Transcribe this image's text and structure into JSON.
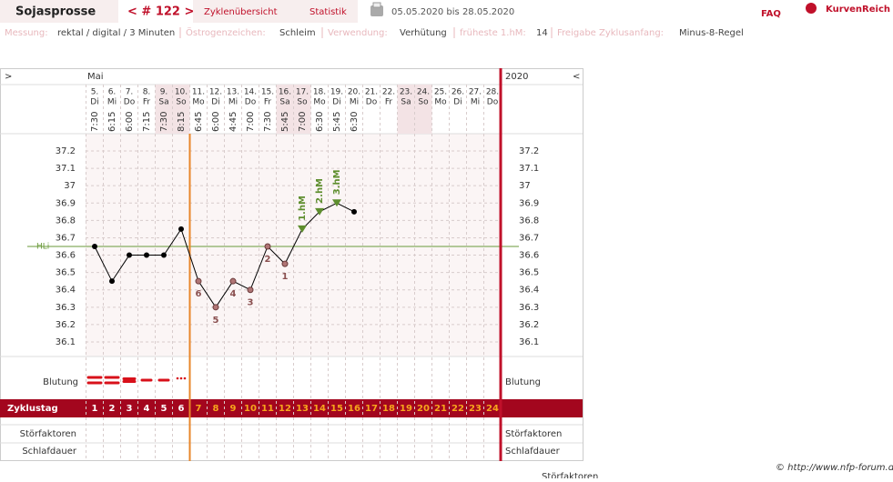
{
  "header": {
    "user": "Sojasprosse",
    "cycle_nav": "< # 122 >",
    "tabs": [
      "Zyklenübersicht",
      "Statistik"
    ],
    "date_range": "05.05.2020 bis 28.05.2020",
    "faq": "FAQ",
    "logo": "KurvenReich"
  },
  "settings": [
    {
      "label": "Messung:",
      "value": "rektal / digital / 3 Minuten"
    },
    {
      "label": "Östrogenzeichen:",
      "value": "Schleim"
    },
    {
      "label": "Verwendung:",
      "value": "Verhütung"
    },
    {
      "label": "früheste 1.hM:",
      "value": 14
    },
    {
      "label": "Freigabe Zyklusanfang:",
      "value": "Minus-8-Regel"
    }
  ],
  "chart": {
    "nav_left": ">",
    "month": "Mai",
    "year": "2020",
    "nav_right": "<",
    "temp_ticks": [
      37.2,
      37.1,
      37,
      36.9,
      36.8,
      36.7,
      36.6,
      36.5,
      36.4,
      36.3,
      36.2,
      36.1
    ],
    "hli_label": "HLi",
    "hli_value": 36.65,
    "days": [
      {
        "day": "5.",
        "weekday": "Di",
        "time": "7:30",
        "temp": 36.65,
        "cycle_day": 1,
        "bleeding": "heavy"
      },
      {
        "day": "6.",
        "weekday": "Mi",
        "time": "6:15",
        "temp": 36.45,
        "cycle_day": 2,
        "bleeding": "heavy"
      },
      {
        "day": "7.",
        "weekday": "Do",
        "time": "6:00",
        "temp": 36.6,
        "cycle_day": 3,
        "bleeding": "medium"
      },
      {
        "day": "8.",
        "weekday": "Fr",
        "time": "7:15",
        "temp": 36.6,
        "cycle_day": 4,
        "bleeding": "light"
      },
      {
        "day": "9.",
        "weekday": "Sa",
        "time": "7:30",
        "temp": 36.6,
        "cycle_day": 5,
        "bleeding": "light"
      },
      {
        "day": "10.",
        "weekday": "So",
        "time": "8:15",
        "temp": 36.75,
        "cycle_day": 6,
        "bleeding": "spotting"
      },
      {
        "day": "11.",
        "weekday": "Mo",
        "time": "6:45",
        "temp": 36.45,
        "cycle_day": 7,
        "low_label": 6
      },
      {
        "day": "12.",
        "weekday": "Di",
        "time": "6:00",
        "temp": 36.3,
        "cycle_day": 8,
        "low_label": 5
      },
      {
        "day": "13.",
        "weekday": "Mi",
        "time": "4:45",
        "temp": 36.45,
        "cycle_day": 9,
        "low_label": 4
      },
      {
        "day": "14.",
        "weekday": "Do",
        "time": "7:00",
        "temp": 36.4,
        "cycle_day": 10,
        "low_label": 3
      },
      {
        "day": "15.",
        "weekday": "Fr",
        "time": "7:30",
        "temp": 36.65,
        "cycle_day": 11,
        "low_label": 2
      },
      {
        "day": "16.",
        "weekday": "Sa",
        "time": "5:45",
        "temp": 36.55,
        "cycle_day": 12,
        "low_label": 1
      },
      {
        "day": "17.",
        "weekday": "So",
        "time": "7:00",
        "temp": 36.75,
        "cycle_day": 13,
        "hm_label": "1.hM"
      },
      {
        "day": "18.",
        "weekday": "Mo",
        "time": "6:30",
        "temp": 36.85,
        "cycle_day": 14,
        "hm_label": "2.hM"
      },
      {
        "day": "19.",
        "weekday": "Di",
        "time": "5:45",
        "temp": 36.9,
        "cycle_day": 15,
        "hm_label": "3.hM"
      },
      {
        "day": "20.",
        "weekday": "Mi",
        "time": "6:30",
        "temp": 36.85,
        "cycle_day": 16
      },
      {
        "day": "21.",
        "weekday": "Do",
        "cycle_day": 17
      },
      {
        "day": "22.",
        "weekday": "Fr",
        "cycle_day": 18
      },
      {
        "day": "23.",
        "weekday": "Sa",
        "cycle_day": 19
      },
      {
        "day": "24.",
        "weekday": "So",
        "cycle_day": 20
      },
      {
        "day": "25.",
        "weekday": "Mo",
        "cycle_day": 21
      },
      {
        "day": "26.",
        "weekday": "Di",
        "cycle_day": 22
      },
      {
        "day": "27.",
        "weekday": "Mi",
        "cycle_day": 23
      },
      {
        "day": "28.",
        "weekday": "Do",
        "cycle_day": 24
      }
    ],
    "row_labels": {
      "bleeding": "Blutung",
      "cycle_day": "Zyklustag",
      "disturbances": "Störfaktoren",
      "sleep": "Schlafdauer"
    }
  },
  "footer": "© http://www.nfp-forum.de"
}
